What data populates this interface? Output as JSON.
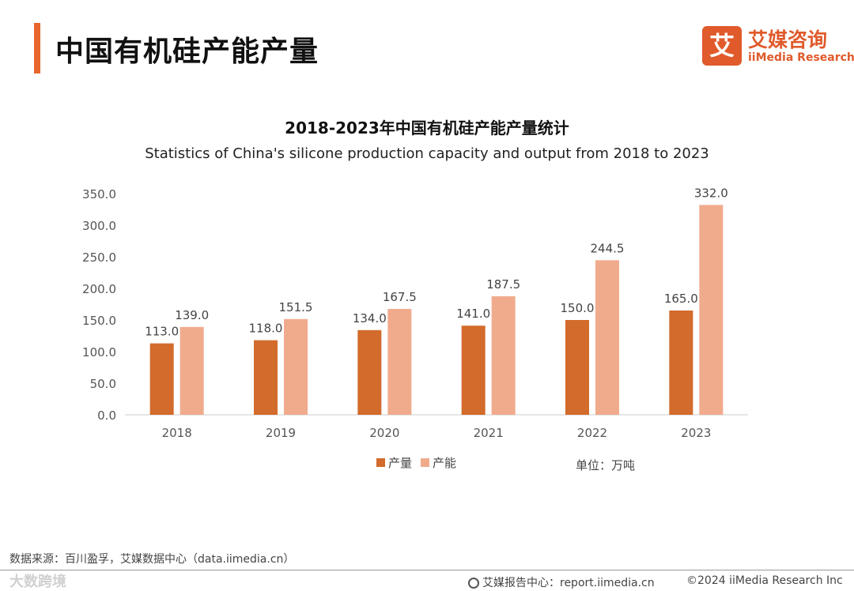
{
  "page": {
    "title": "中国有机硅产能产量",
    "source": "数据来源：百川盈孚，艾媒数据中心（data.iimedia.cn）",
    "report_link": "艾媒报告中心：report.iimedia.cn",
    "copyright": "©2024  iiMedia Research Inc",
    "watermark": "大数跨境"
  },
  "logo": {
    "mark": "艾",
    "cn": "艾媒咨询",
    "en": "iiMedia Research"
  },
  "chart_data": {
    "type": "bar",
    "title": "2018-2023年中国有机硅产能产量统计",
    "subtitle": "Statistics of China's silicone production capacity and output from 2018 to 2023",
    "categories": [
      "2018",
      "2019",
      "2020",
      "2021",
      "2022",
      "2023"
    ],
    "series": [
      {
        "name": "产量",
        "color": "#d26b2b",
        "values": [
          113.0,
          118.0,
          134.0,
          141.0,
          150.0,
          165.0
        ]
      },
      {
        "name": "产能",
        "color": "#f0ab8c",
        "values": [
          139.0,
          151.5,
          167.5,
          187.5,
          244.5,
          332.0
        ]
      }
    ],
    "y_ticks": [
      "0.0",
      "50.0",
      "100.0",
      "150.0",
      "200.0",
      "250.0",
      "300.0",
      "350.0"
    ],
    "ylim": [
      0,
      350
    ],
    "unit": "单位：万吨",
    "legend_position": "bottom-center"
  }
}
